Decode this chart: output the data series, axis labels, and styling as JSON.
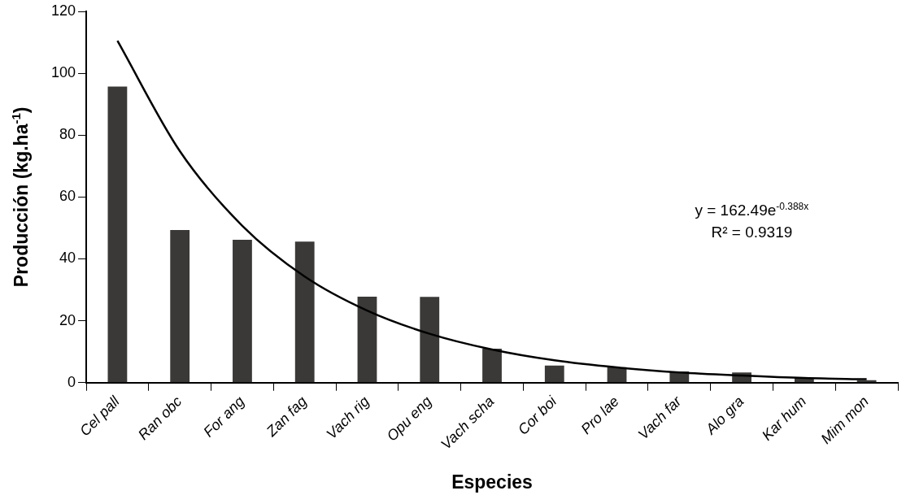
{
  "chart_data": {
    "type": "bar",
    "xlabel": "Especies",
    "ylabel": "Producción (kg.ha$^{-1}$)",
    "categories": [
      "Cel pall",
      "Ran obc",
      "For ang",
      "Zan fag",
      "Vach rig",
      "Opu eng",
      "Vach scha",
      "Cor boi",
      "Pro lae",
      "Vach far",
      "Alo gra",
      "Kar hum",
      "Mim mon"
    ],
    "series": [
      {
        "color": "#3a3937",
        "values": [
          95.7,
          49.3,
          46.2,
          45.6,
          27.8,
          27.7,
          11.0,
          5.5,
          5.0,
          3.6,
          3.3,
          1.6,
          0.8
        ]
      },
      {
        "type": "line",
        "color": "#000000",
        "values": [
          110.5,
          74.8,
          50.7,
          34.3,
          23.3,
          15.8,
          10.7,
          7.2,
          4.9,
          3.3,
          2.3,
          1.5,
          1.1
        ]
      }
    ],
    "ylim": [
      0,
      120
    ],
    "yticks": [
      0,
      20,
      40,
      60,
      80,
      100,
      120
    ],
    "grid": false,
    "legend": false,
    "marker": "none",
    "line_style": "solid",
    "annotations": [
      "y = 162.49e$^{-0.388x}$",
      "R² = 0.9319"
    ]
  }
}
